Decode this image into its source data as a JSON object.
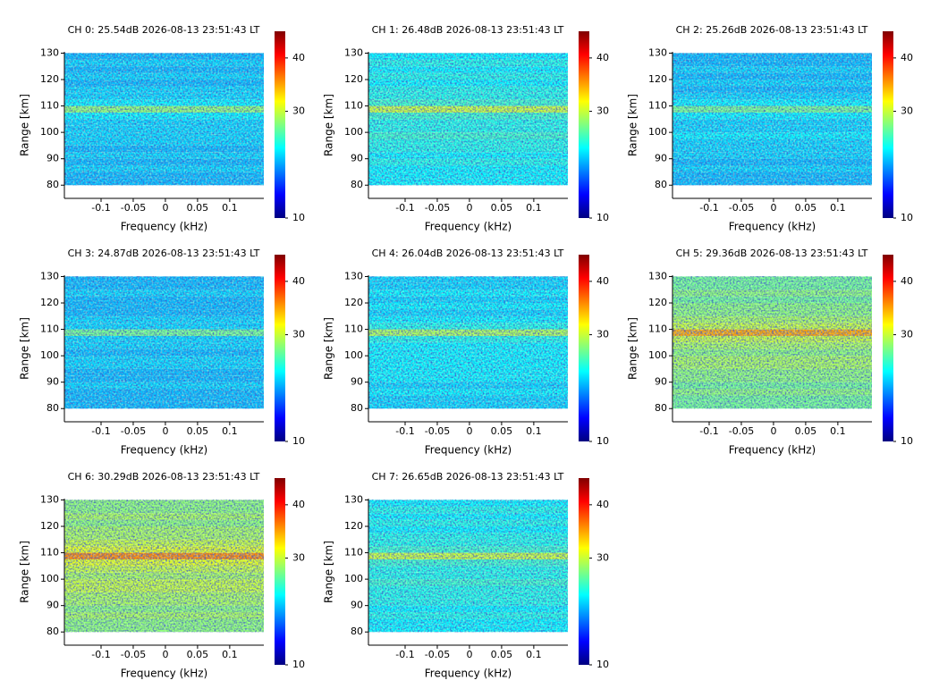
{
  "chart_data": [
    {
      "type": "heatmap",
      "title": "CH 0: 25.54dB 2026-08-13 23:51:43 LT",
      "xlabel": "Frequency (kHz)",
      "ylabel": "Range [km]",
      "xlim": [
        -0.157,
        0.153
      ],
      "ylim": [
        75,
        130.5
      ],
      "xticks": [
        -0.1,
        -0.05,
        0,
        0.05,
        0.1
      ],
      "yticks": [
        80,
        90,
        100,
        110,
        120,
        130
      ],
      "y": [
        80,
        82.5,
        85,
        87.5,
        90,
        92.5,
        95,
        97.5,
        100,
        102.5,
        105,
        107.5,
        110,
        112.5,
        115,
        117.5,
        120,
        122.5,
        125,
        127.5,
        130
      ],
      "values": [
        21,
        21,
        22,
        21,
        22,
        21,
        22,
        22,
        22,
        22,
        23,
        28,
        23,
        22,
        22,
        21,
        22,
        21,
        22,
        21
      ],
      "clim": [
        10,
        45
      ],
      "cticks": [
        10,
        30,
        40
      ],
      "colormap": "jet"
    },
    {
      "type": "heatmap",
      "title": "CH 1: 26.48dB 2026-08-13 23:51:43 LT",
      "xlabel": "Frequency (kHz)",
      "ylabel": "Range [km]",
      "xlim": [
        -0.157,
        0.153
      ],
      "ylim": [
        75,
        130.5
      ],
      "xticks": [
        -0.1,
        -0.05,
        0,
        0.05,
        0.1
      ],
      "yticks": [
        80,
        90,
        100,
        110,
        120,
        130
      ],
      "y": [
        80,
        82.5,
        85,
        87.5,
        90,
        92.5,
        95,
        97.5,
        100,
        102.5,
        105,
        107.5,
        110,
        112.5,
        115,
        117.5,
        120,
        122.5,
        125,
        127.5,
        130
      ],
      "values": [
        23,
        23,
        23,
        24,
        23,
        24,
        24,
        25,
        24,
        24,
        25,
        30,
        25,
        24,
        24,
        23,
        24,
        23,
        24,
        23
      ],
      "clim": [
        10,
        45
      ],
      "cticks": [
        10,
        30,
        40
      ],
      "colormap": "jet"
    },
    {
      "type": "heatmap",
      "title": "CH 2: 25.26dB 2026-08-13 23:51:43 LT",
      "xlabel": "Frequency (kHz)",
      "ylabel": "Range [km]",
      "xlim": [
        -0.157,
        0.153
      ],
      "ylim": [
        75,
        130.5
      ],
      "xticks": [
        -0.1,
        -0.05,
        0,
        0.05,
        0.1
      ],
      "yticks": [
        80,
        90,
        100,
        110,
        120,
        130
      ],
      "y": [
        80,
        82.5,
        85,
        87.5,
        90,
        92.5,
        95,
        97.5,
        100,
        102.5,
        105,
        107.5,
        110,
        112.5,
        115,
        117.5,
        120,
        122.5,
        125,
        127.5,
        130
      ],
      "values": [
        21,
        21,
        22,
        21,
        22,
        22,
        22,
        23,
        22,
        22,
        23,
        27,
        23,
        22,
        21,
        22,
        21,
        22,
        21,
        21
      ],
      "clim": [
        10,
        45
      ],
      "cticks": [
        10,
        30,
        40
      ],
      "colormap": "jet"
    },
    {
      "type": "heatmap",
      "title": "CH 3: 24.87dB 2026-08-13 23:51:43 LT",
      "xlabel": "Frequency (kHz)",
      "ylabel": "Range [km]",
      "xlim": [
        -0.157,
        0.153
      ],
      "ylim": [
        75,
        130.5
      ],
      "xticks": [
        -0.1,
        -0.05,
        0,
        0.05,
        0.1
      ],
      "yticks": [
        80,
        90,
        100,
        110,
        120,
        130
      ],
      "y": [
        80,
        82.5,
        85,
        87.5,
        90,
        92.5,
        95,
        97.5,
        100,
        102.5,
        105,
        107.5,
        110,
        112.5,
        115,
        117.5,
        120,
        122.5,
        125,
        127.5,
        130
      ],
      "values": [
        21,
        21,
        21,
        22,
        21,
        21,
        22,
        22,
        21,
        22,
        22,
        27,
        22,
        22,
        21,
        21,
        21,
        22,
        21,
        21
      ],
      "clim": [
        10,
        45
      ],
      "cticks": [
        10,
        30,
        40
      ],
      "colormap": "jet"
    },
    {
      "type": "heatmap",
      "title": "CH 4: 26.04dB 2026-08-13 23:51:43 LT",
      "xlabel": "Frequency (kHz)",
      "ylabel": "Range [km]",
      "xlim": [
        -0.157,
        0.153
      ],
      "ylim": [
        75,
        130.5
      ],
      "xticks": [
        -0.1,
        -0.05,
        0,
        0.05,
        0.1
      ],
      "yticks": [
        80,
        90,
        100,
        110,
        120,
        130
      ],
      "y": [
        80,
        82.5,
        85,
        87.5,
        90,
        92.5,
        95,
        97.5,
        100,
        102.5,
        105,
        107.5,
        110,
        112.5,
        115,
        117.5,
        120,
        122.5,
        125,
        127.5,
        130
      ],
      "values": [
        22,
        22,
        23,
        22,
        23,
        23,
        23,
        23,
        23,
        23,
        24,
        29,
        24,
        23,
        22,
        23,
        22,
        23,
        22,
        22
      ],
      "clim": [
        10,
        45
      ],
      "cticks": [
        10,
        30,
        40
      ],
      "colormap": "jet"
    },
    {
      "type": "heatmap",
      "title": "CH 5: 29.36dB 2026-08-13 23:51:43 LT",
      "xlabel": "Frequency (kHz)",
      "ylabel": "Range [km]",
      "xlim": [
        -0.157,
        0.153
      ],
      "ylim": [
        75,
        130.5
      ],
      "xticks": [
        -0.1,
        -0.05,
        0,
        0.05,
        0.1
      ],
      "yticks": [
        80,
        90,
        100,
        110,
        120,
        130
      ],
      "y": [
        80,
        82.5,
        85,
        87.5,
        90,
        92.5,
        95,
        97.5,
        100,
        102.5,
        105,
        107.5,
        110,
        112.5,
        115,
        117.5,
        120,
        122.5,
        125,
        127.5,
        130
      ],
      "values": [
        27,
        27,
        28,
        27,
        28,
        28,
        29,
        29,
        28,
        29,
        30,
        35,
        30,
        29,
        28,
        28,
        27,
        28,
        27,
        27
      ],
      "clim": [
        10,
        45
      ],
      "cticks": [
        10,
        30,
        40
      ],
      "colormap": "jet"
    },
    {
      "type": "heatmap",
      "title": "CH 6: 30.29dB 2026-08-13 23:51:43 LT",
      "xlabel": "Frequency (kHz)",
      "ylabel": "Range [km]",
      "xlim": [
        -0.157,
        0.153
      ],
      "ylim": [
        75,
        130.5
      ],
      "xticks": [
        -0.1,
        -0.05,
        0,
        0.05,
        0.1
      ],
      "yticks": [
        80,
        90,
        100,
        110,
        120,
        130
      ],
      "y": [
        80,
        82.5,
        85,
        87.5,
        90,
        92.5,
        95,
        97.5,
        100,
        102.5,
        105,
        107.5,
        110,
        112.5,
        115,
        117.5,
        120,
        122.5,
        125,
        127.5,
        130
      ],
      "values": [
        28,
        28,
        29,
        28,
        29,
        29,
        30,
        30,
        29,
        30,
        31,
        36,
        31,
        30,
        29,
        29,
        28,
        29,
        28,
        28
      ],
      "clim": [
        10,
        45
      ],
      "cticks": [
        10,
        30,
        40
      ],
      "colormap": "jet"
    },
    {
      "type": "heatmap",
      "title": "CH 7: 26.65dB 2026-08-13 23:51:43 LT",
      "xlabel": "Frequency (kHz)",
      "ylabel": "Range [km]",
      "xlim": [
        -0.157,
        0.153
      ],
      "ylim": [
        75,
        130.5
      ],
      "xticks": [
        -0.1,
        -0.05,
        0,
        0.05,
        0.1
      ],
      "yticks": [
        80,
        90,
        100,
        110,
        120,
        130
      ],
      "y": [
        80,
        82.5,
        85,
        87.5,
        90,
        92.5,
        95,
        97.5,
        100,
        102.5,
        105,
        107.5,
        110,
        112.5,
        115,
        117.5,
        120,
        122.5,
        125,
        127.5,
        130
      ],
      "values": [
        23,
        23,
        24,
        23,
        24,
        24,
        24,
        25,
        24,
        24,
        25,
        30,
        25,
        24,
        24,
        23,
        24,
        23,
        24,
        23
      ],
      "clim": [
        10,
        45
      ],
      "cticks": [
        10,
        30,
        40
      ],
      "colormap": "jet"
    }
  ]
}
